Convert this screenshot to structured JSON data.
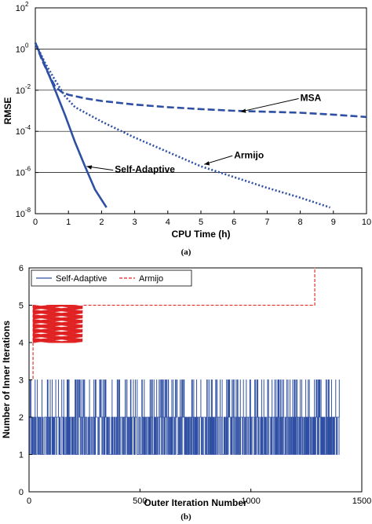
{
  "chart_data": [
    {
      "type": "line",
      "xlabel": "CPU Time (h)",
      "ylabel": "RMSE",
      "caption": "(a)",
      "xlim": [
        0,
        10
      ],
      "ylim": [
        1e-08,
        100
      ],
      "yscale": "log",
      "grid": "horizontal",
      "x_ticks": [
        "0",
        "1",
        "2",
        "3",
        "4",
        "5",
        "6",
        "7",
        "8",
        "9",
        "10"
      ],
      "y_ticks": [
        {
          "base": "10",
          "exp": "2"
        },
        {
          "base": "10",
          "exp": "0"
        },
        {
          "base": "10",
          "exp": "-2"
        },
        {
          "base": "10",
          "exp": "-4"
        },
        {
          "base": "10",
          "exp": "-6"
        },
        {
          "base": "10",
          "exp": "-8"
        }
      ],
      "series": [
        {
          "name": "MSA",
          "style": "dashed",
          "color": "#2e4fa3",
          "points": [
            [
              0,
              2
            ],
            [
              0.2,
              0.3
            ],
            [
              0.4,
              0.06
            ],
            [
              0.6,
              0.015
            ],
            [
              0.8,
              0.008
            ],
            [
              1,
              0.006
            ],
            [
              1.5,
              0.004
            ],
            [
              2,
              0.003
            ],
            [
              3,
              0.002
            ],
            [
              4,
              0.0015
            ],
            [
              5,
              0.0012
            ],
            [
              6,
              0.001
            ],
            [
              7,
              0.0009
            ],
            [
              8,
              0.0008
            ],
            [
              9,
              0.00065
            ],
            [
              10,
              0.0005
            ]
          ]
        },
        {
          "name": "Armijo",
          "style": "dotted",
          "color": "#2e4fa3",
          "points": [
            [
              0,
              2
            ],
            [
              0.3,
              0.2
            ],
            [
              0.6,
              0.03
            ],
            [
              0.9,
              0.005
            ],
            [
              1.2,
              0.0015
            ],
            [
              2,
              0.0003
            ],
            [
              3,
              5e-05
            ],
            [
              4,
              1e-05
            ],
            [
              5,
              2e-06
            ],
            [
              6,
              6e-07
            ],
            [
              7,
              1.8e-07
            ],
            [
              8,
              6e-08
            ],
            [
              8.9,
              2e-08
            ]
          ]
        },
        {
          "name": "Self-Adaptive",
          "style": "solid",
          "color": "#2e4fa3",
          "points": [
            [
              0,
              2
            ],
            [
              0.3,
              0.15
            ],
            [
              0.6,
              0.01
            ],
            [
              0.9,
              0.0006
            ],
            [
              1.2,
              3e-05
            ],
            [
              1.5,
              2e-06
            ],
            [
              1.8,
              1.5e-07
            ],
            [
              2.15,
              2e-08
            ]
          ]
        }
      ],
      "annotations": [
        {
          "text": "MSA",
          "x": 8.0,
          "y": 0.003,
          "arrow_to": [
            6.2,
            0.0009
          ]
        },
        {
          "text": "Armijo",
          "x": 6.0,
          "y": 5e-06,
          "arrow_to": [
            5.1,
            2.5e-06
          ]
        },
        {
          "text": "Self-Adaptive",
          "x": 2.4,
          "y": 1e-06,
          "arrow_to": [
            1.55,
            2e-06
          ]
        }
      ]
    },
    {
      "type": "line",
      "xlabel": "Outer Iteration Number",
      "ylabel": "Number of Inner Iterations",
      "caption": "(b)",
      "xlim": [
        0,
        1500
      ],
      "ylim": [
        0,
        6
      ],
      "x_ticks": [
        "0",
        "500",
        "1000",
        "1500"
      ],
      "y_ticks": [
        "0",
        "1",
        "2",
        "3",
        "4",
        "5",
        "6"
      ],
      "legend": "top-left",
      "series": [
        {
          "name": "Self-Adaptive",
          "style": "solid",
          "color": "#2e4fa3",
          "description_values": {
            "min": 1,
            "max": 3,
            "x_range": [
              1,
              1400
            ],
            "typical": 2
          }
        },
        {
          "name": "Armijo",
          "style": "dashed",
          "color": "#e02020",
          "description_values": {
            "x_range": [
              1,
              1290
            ],
            "start": 3,
            "oscillation": [
              4,
              5
            ],
            "oscillation_x_range": [
              1,
              240
            ],
            "plateau": 5,
            "final": 6
          }
        }
      ]
    }
  ]
}
